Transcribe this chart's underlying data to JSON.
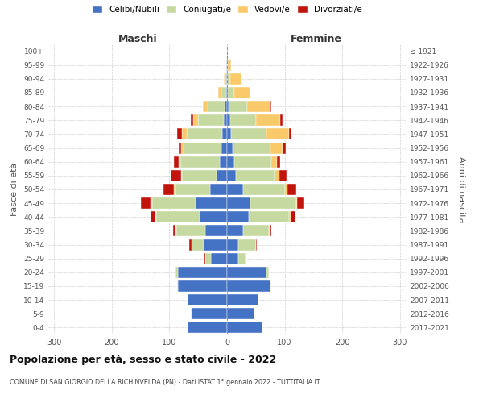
{
  "age_groups": [
    "0-4",
    "5-9",
    "10-14",
    "15-19",
    "20-24",
    "25-29",
    "30-34",
    "35-39",
    "40-44",
    "45-49",
    "50-54",
    "55-59",
    "60-64",
    "65-69",
    "70-74",
    "75-79",
    "80-84",
    "85-89",
    "90-94",
    "95-99",
    "100+"
  ],
  "birth_years": [
    "2017-2021",
    "2012-2016",
    "2007-2011",
    "2002-2006",
    "1997-2001",
    "1992-1996",
    "1987-1991",
    "1982-1986",
    "1977-1981",
    "1972-1976",
    "1967-1971",
    "1962-1966",
    "1957-1961",
    "1952-1956",
    "1947-1951",
    "1942-1946",
    "1937-1941",
    "1932-1936",
    "1927-1931",
    "1922-1926",
    "≤ 1921"
  ],
  "male_celibi": [
    68,
    62,
    68,
    85,
    85,
    28,
    40,
    38,
    48,
    55,
    30,
    18,
    13,
    10,
    8,
    5,
    4,
    2,
    1,
    1,
    0
  ],
  "male_coniugati": [
    0,
    1,
    1,
    2,
    5,
    10,
    22,
    50,
    75,
    75,
    60,
    60,
    68,
    65,
    62,
    45,
    30,
    8,
    3,
    1,
    0
  ],
  "male_vedovi": [
    0,
    0,
    0,
    0,
    0,
    0,
    0,
    1,
    1,
    2,
    2,
    2,
    3,
    4,
    8,
    8,
    8,
    5,
    2,
    0,
    0
  ],
  "male_divorziati": [
    0,
    0,
    0,
    0,
    0,
    2,
    3,
    5,
    8,
    18,
    18,
    18,
    8,
    5,
    8,
    5,
    0,
    0,
    0,
    0,
    0
  ],
  "female_celibi": [
    62,
    48,
    55,
    75,
    68,
    20,
    20,
    28,
    38,
    40,
    28,
    15,
    12,
    10,
    7,
    5,
    3,
    1,
    0,
    0,
    0
  ],
  "female_coniugati": [
    0,
    0,
    0,
    2,
    5,
    12,
    30,
    45,
    70,
    80,
    72,
    68,
    65,
    65,
    62,
    45,
    32,
    12,
    5,
    2,
    0
  ],
  "female_vedovi": [
    0,
    0,
    0,
    0,
    0,
    0,
    0,
    1,
    2,
    2,
    5,
    8,
    10,
    22,
    38,
    42,
    40,
    28,
    20,
    5,
    2
  ],
  "female_divorziati": [
    0,
    0,
    0,
    0,
    0,
    1,
    2,
    3,
    8,
    12,
    15,
    12,
    5,
    5,
    5,
    4,
    2,
    0,
    0,
    0,
    0
  ],
  "colors": {
    "celibi": "#4472c4",
    "coniugati": "#c5d9a0",
    "vedovi": "#f9c96a",
    "divorziati": "#c0140c"
  },
  "title": "Popolazione per età, sesso e stato civile - 2022",
  "subtitle": "COMUNE DI SAN GIORGIO DELLA RICHINVELDA (PN) - Dati ISTAT 1° gennaio 2022 - TUTTITALIA.IT",
  "xlabel_left": "Maschi",
  "xlabel_right": "Femmine",
  "ylabel_left": "Fasce di età",
  "ylabel_right": "Anni di nascita",
  "xlim": 310,
  "background_color": "#ffffff",
  "grid_color": "#cccccc"
}
